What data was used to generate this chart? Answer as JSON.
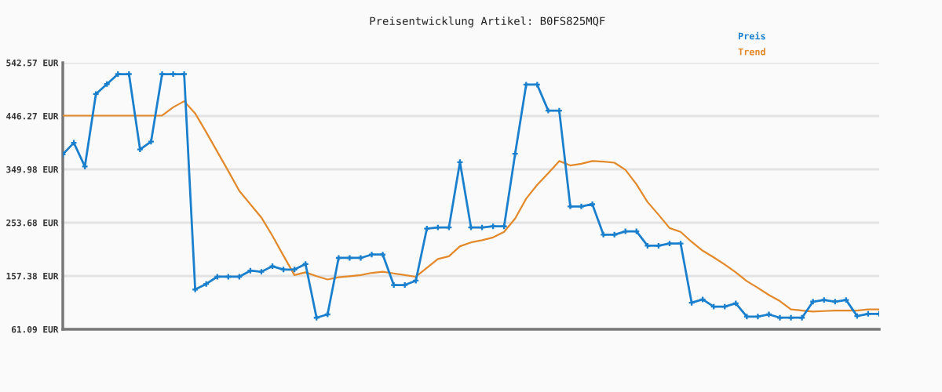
{
  "chart_data": {
    "type": "line",
    "title": "Preisentwicklung Artikel: B0FS825MQF",
    "categories": [
      null,
      null,
      null,
      null,
      null,
      null,
      null,
      null,
      null,
      null,
      null,
      null,
      null,
      null,
      null,
      null,
      null,
      null,
      null,
      null,
      null,
      null,
      null,
      null,
      null,
      null,
      null,
      null,
      null,
      null,
      null,
      null,
      null,
      null,
      null,
      null,
      null,
      null,
      null,
      null,
      null,
      null,
      null,
      null,
      null,
      null,
      null,
      null,
      null,
      null,
      null,
      null,
      null,
      null,
      null,
      null,
      null,
      null,
      null,
      null,
      null,
      null,
      null,
      null,
      null,
      null,
      null,
      null,
      null,
      null,
      null,
      null,
      null,
      null,
      null
    ],
    "series": [
      {
        "name": "Preis",
        "color": "#1a7fcc",
        "marker": "cross",
        "values": [
          377,
          398,
          355,
          486,
          504,
          522,
          522,
          386,
          400,
          522,
          522,
          522,
          133,
          143,
          156,
          156,
          156,
          167,
          165,
          175,
          169,
          169,
          179,
          82,
          88,
          190,
          190,
          190,
          196,
          196,
          141,
          141,
          149,
          243,
          245,
          245,
          363,
          245,
          245,
          247,
          247,
          378,
          503,
          503,
          456,
          456,
          283,
          283,
          287,
          232,
          232,
          238,
          238,
          212,
          212,
          216,
          216,
          109,
          115,
          102,
          102,
          108,
          84,
          84,
          88,
          82,
          82,
          82,
          111,
          114,
          111,
          114,
          85,
          89,
          89
        ]
      },
      {
        "name": "Trend",
        "color": "#e3892a",
        "marker": "none",
        "values": [
          447,
          447,
          447,
          447,
          447,
          447,
          447,
          447,
          447,
          447,
          462,
          473,
          451,
          417,
          382,
          347,
          311,
          287,
          263,
          230,
          194,
          159,
          164,
          157,
          151,
          155,
          157,
          159,
          163,
          165,
          162,
          159,
          156,
          172,
          188,
          193,
          211,
          218,
          222,
          227,
          237,
          261,
          297,
          322,
          343,
          365,
          357,
          360,
          365,
          364,
          362,
          349,
          323,
          291,
          268,
          244,
          237,
          219,
          203,
          191,
          178,
          164,
          148,
          136,
          123,
          112,
          97,
          95,
          93,
          94,
          95,
          95,
          95,
          97,
          97
        ]
      }
    ],
    "ylim": [
      61.09,
      542.57
    ],
    "yticks": [
      {
        "value": 61.09,
        "label": "61.09 EUR"
      },
      {
        "value": 157.38,
        "label": "157.38 EUR"
      },
      {
        "value": 253.68,
        "label": "253.68 EUR"
      },
      {
        "value": 349.98,
        "label": "349.98 EUR"
      },
      {
        "value": 446.27,
        "label": "446.27 EUR"
      },
      {
        "value": 542.57,
        "label": "542.57 EUR"
      }
    ],
    "grid": "y",
    "legend": "top right",
    "tick_labels": "y",
    "line_style": "solid"
  }
}
